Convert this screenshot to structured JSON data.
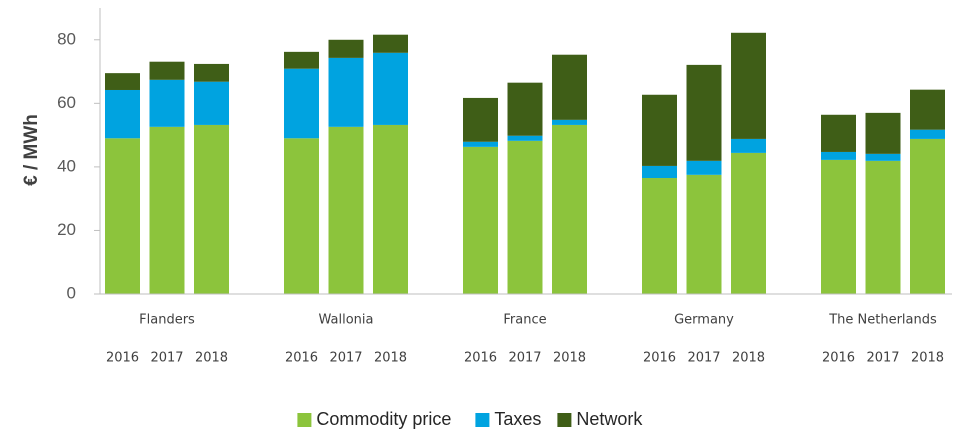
{
  "chart_data": {
    "type": "stacked_bar",
    "y_label": "€ / MWh",
    "groups": [
      "Flanders",
      "Wallonia",
      "France",
      "Germany",
      "The Netherlands"
    ],
    "categories": [
      "2016",
      "2017",
      "2018",
      "2016",
      "2017",
      "2018",
      "2016",
      "2017",
      "2018",
      "2016",
      "2017",
      "2018",
      "2016",
      "2017",
      "2018"
    ],
    "series": [
      {
        "name": "Commodity price",
        "color": "#8cc43c",
        "values": [
          49,
          52.6,
          53.2,
          49,
          52.6,
          53.2,
          46.3,
          48.2,
          53.2,
          36.5,
          37.5,
          44.4,
          42.2,
          41.9,
          48.8
        ]
      },
      {
        "name": "Taxes",
        "color": "#00a3e0",
        "values": [
          15.2,
          14.8,
          13.6,
          21.9,
          21.7,
          22.7,
          1.6,
          1.6,
          1.6,
          3.8,
          4.4,
          4.4,
          2.5,
          2.2,
          2.9
        ]
      },
      {
        "name": "Network",
        "color": "#3f5e17",
        "values": [
          5.3,
          5.7,
          5.6,
          5.3,
          5.7,
          5.7,
          13.8,
          16.7,
          20.5,
          22.4,
          30.2,
          33.4,
          11.7,
          12.9,
          12.6
        ]
      }
    ],
    "ylim": [
      0,
      90
    ],
    "yticks": [
      0,
      20,
      40,
      60,
      80
    ],
    "legend": "bottom"
  }
}
